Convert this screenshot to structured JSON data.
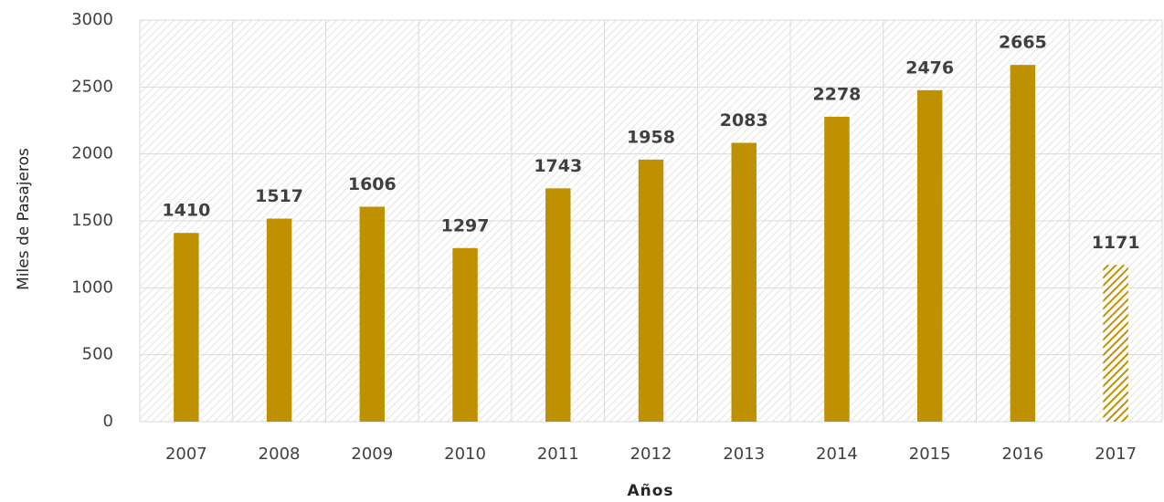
{
  "chart_data": {
    "type": "bar",
    "x_label": "Años",
    "y_label": "Miles de Pasajeros",
    "categories": [
      "2007",
      "2008",
      "2009",
      "2010",
      "2011",
      "2012",
      "2013",
      "2014",
      "2015",
      "2016",
      "2017"
    ],
    "values": [
      1410,
      1517,
      1606,
      1297,
      1743,
      1958,
      2083,
      2278,
      2476,
      2665,
      1171
    ],
    "hatched": [
      false,
      false,
      false,
      false,
      false,
      false,
      false,
      false,
      false,
      false,
      true
    ],
    "color": "#bf9000",
    "ylim": [
      0,
      3000
    ],
    "yticks": [
      0,
      500,
      1000,
      1500,
      2000,
      2500,
      3000
    ],
    "grid": true
  }
}
